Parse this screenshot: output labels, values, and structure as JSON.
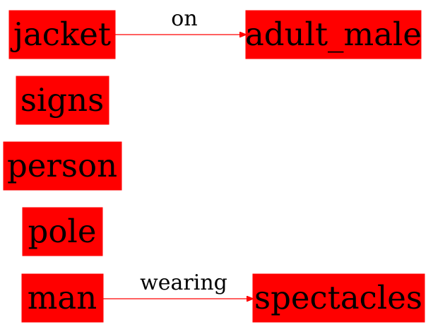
{
  "colors": {
    "node_fill": "#ff0000",
    "edge": "#ff0000",
    "text": "#000000"
  },
  "nodes": {
    "jacket": "jacket",
    "adult_male": "adult_male",
    "signs": "signs",
    "person": "person",
    "pole": "pole",
    "man": "man",
    "spectacles": "spectacles"
  },
  "edges": {
    "jacket_adult_male": "on",
    "man_spectacles": "wearing"
  }
}
